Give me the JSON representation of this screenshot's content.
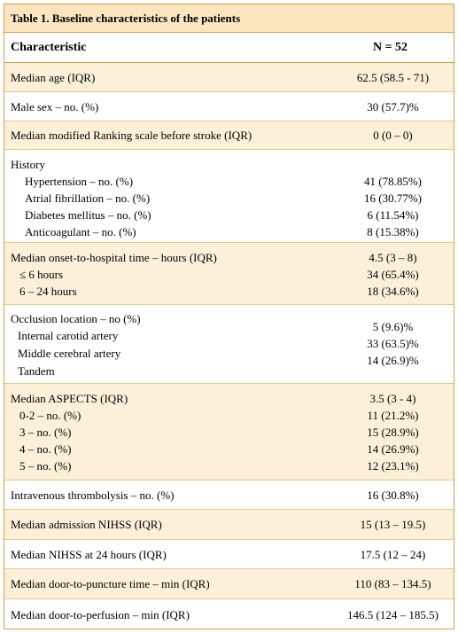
{
  "caption": "Table 1. Baseline characteristics of the patients",
  "header": {
    "col1": "Characteristic",
    "col2": "N = 52"
  },
  "rows": [
    {
      "label": "Median age (IQR)",
      "value": "62.5 (58.5 - 71)"
    },
    {
      "label": "Male sex – no. (%)",
      "value": "30 (57.7)%"
    },
    {
      "label": "Median modified Ranking scale before stroke (IQR)",
      "value": "0 (0 – 0)"
    },
    {
      "label": "History",
      "subs": [
        {
          "label": "Hypertension – no. (%)",
          "value": "41 (78.85%)"
        },
        {
          "label": "Atrial fibrillation – no. (%)",
          "value": "16 (30.77%)"
        },
        {
          "label": "Diabetes mellitus – no. (%)",
          "value": "6 (11.54%)"
        },
        {
          "label": "Anticoagulant – no. (%)",
          "value": "8 (15.38%)"
        }
      ]
    },
    {
      "label": "Median onset-to-hospital time – hours (IQR)",
      "value": "4.5 (3 – 8)",
      "subs": [
        {
          "label": "≤ 6 hours",
          "value": "34 (65.4%)"
        },
        {
          "label": "6 – 24 hours",
          "value": "18 (34.6%)"
        }
      ]
    },
    {
      "label": "Occlusion location – no (%)",
      "subs": [
        {
          "label": "Internal carotid artery",
          "value": "5 (9.6)%"
        },
        {
          "label": "Middle cerebral artery",
          "value": "33 (63.5)%"
        },
        {
          "label": "Tandem",
          "value": "14 (26.9)%"
        }
      ]
    },
    {
      "label": "Median ASPECTS (IQR)",
      "value": "3.5 (3 - 4)",
      "subs": [
        {
          "label": "0-2 – no. (%)",
          "value": "11 (21.2%)"
        },
        {
          "label": "3 – no. (%)",
          "value": "15 (28.9%)"
        },
        {
          "label": "4 – no. (%)",
          "value": "14 (26.9%)"
        },
        {
          "label": "5 – no. (%)",
          "value": "12 (23.1%)"
        }
      ]
    },
    {
      "label": "Intravenous thrombolysis – no. (%)",
      "value": "16 (30.8%)"
    },
    {
      "label": "Median admission NIHSS (IQR)",
      "value": "15 (13 – 19.5)"
    },
    {
      "label": "Median NIHSS at 24 hours (IQR)",
      "value": "17.5 (12 – 24)"
    },
    {
      "label": "Median door-to-puncture time – min (IQR)",
      "value": "110 (83 – 134.5)"
    },
    {
      "label": "Median door-to-perfusion – min (IQR)",
      "value": "146.5 (124 – 185.5)"
    }
  ]
}
